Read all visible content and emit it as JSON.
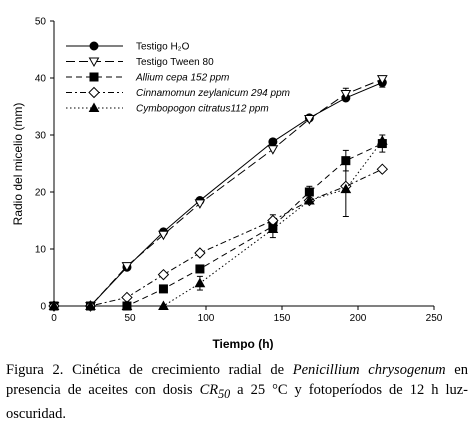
{
  "chart_data": {
    "type": "line",
    "xlabel": "Tiempo (h)",
    "ylabel": "Radio del micelio (mm)",
    "xlim": [
      0,
      250
    ],
    "ylim": [
      0,
      50
    ],
    "xticks": [
      0,
      50,
      100,
      150,
      200,
      250
    ],
    "yticks": [
      0,
      10,
      20,
      30,
      40,
      50
    ],
    "grid": false,
    "legend_position": "top-left",
    "series": [
      {
        "name": "Testigo H₂O",
        "marker": "circle-filled",
        "dash": "solid",
        "x": [
          0,
          24,
          48,
          72,
          96,
          144,
          168,
          192,
          216
        ],
        "y": [
          0,
          0,
          6.8,
          13.0,
          18.5,
          28.8,
          33.0,
          36.5,
          39.2
        ]
      },
      {
        "name": "Testigo Tween 80",
        "marker": "triangle-down-open",
        "dash": "long-dash",
        "x": [
          0,
          24,
          48,
          72,
          96,
          144,
          168,
          192,
          216
        ],
        "y": [
          0,
          0,
          7.0,
          12.5,
          18.0,
          27.5,
          32.8,
          37.2,
          39.8
        ]
      },
      {
        "name": "Allium cepa 152 ppm",
        "marker": "square-filled",
        "dash": "dash",
        "x": [
          0,
          24,
          48,
          72,
          96,
          144,
          168,
          192,
          216
        ],
        "y": [
          0,
          0,
          0,
          3.0,
          6.5,
          14.0,
          20.0,
          25.5,
          28.5
        ]
      },
      {
        "name": "Cinnamomun zeylanicum 294 ppm",
        "marker": "diamond-open",
        "dash": "dash-dot",
        "x": [
          0,
          24,
          48,
          72,
          96,
          144,
          168,
          192,
          216
        ],
        "y": [
          0,
          0,
          1.5,
          5.5,
          9.3,
          15.0,
          18.5,
          21.0,
          24.0
        ]
      },
      {
        "name": "Cymbopogon citratus112 ppm",
        "marker": "triangle-up-filled",
        "dash": "dotted",
        "x": [
          0,
          24,
          48,
          72,
          96,
          144,
          168,
          192,
          216
        ],
        "y": [
          0,
          0,
          0,
          0,
          4.0,
          13.5,
          18.5,
          20.5,
          29.0
        ]
      }
    ],
    "error_bars": [
      {
        "series": 2,
        "x": 192,
        "err": 1.8
      },
      {
        "series": 2,
        "x": 216,
        "err": 1.5
      },
      {
        "series": 2,
        "x": 168,
        "err": 1.0
      },
      {
        "series": 4,
        "x": 192,
        "err": 4.8
      },
      {
        "series": 4,
        "x": 96,
        "err": 1.2
      },
      {
        "series": 4,
        "x": 144,
        "err": 1.5
      },
      {
        "series": 3,
        "x": 144,
        "err": 1.0
      },
      {
        "series": 1,
        "x": 192,
        "err": 1.0
      },
      {
        "series": 0,
        "x": 216,
        "err": 0.8
      }
    ]
  },
  "caption": {
    "p1": "Figura 2. Cinética de crecimiento radial de ",
    "p2": "Penicillium chrysogenum",
    "p3": " en presencia de aceites con dosis ",
    "p4": "CR",
    "p5": "50",
    "p6": " a 25 °C y fotoperíodos de 12 h luz-oscuridad."
  }
}
